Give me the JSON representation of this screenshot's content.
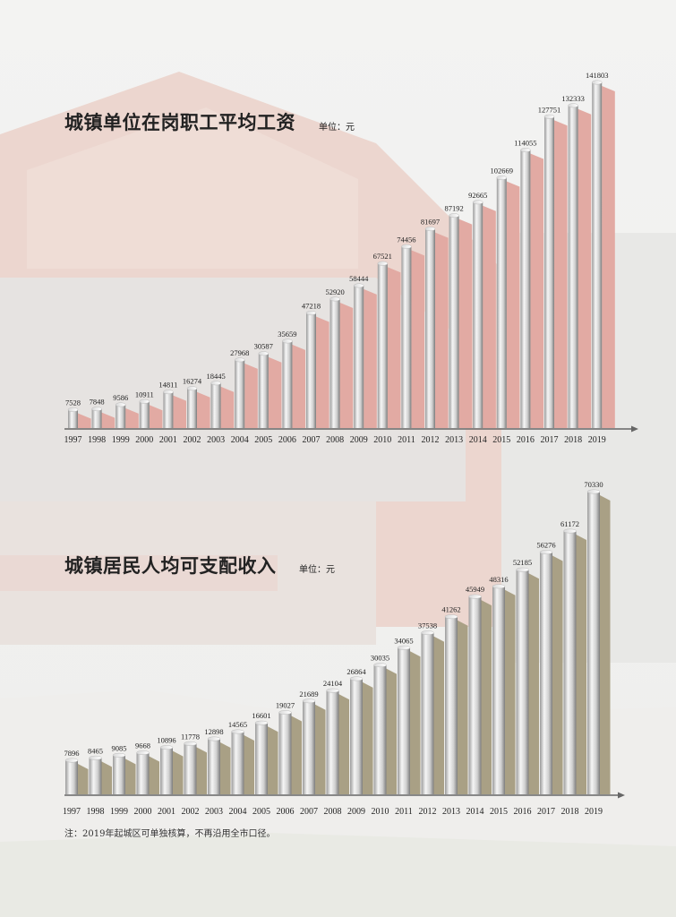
{
  "charts_text": {
    "chart1_title": "城镇单位在岗职工平均工资",
    "chart1_unit": "单位：元",
    "chart2_title": "城镇居民人均可支配收入",
    "chart2_unit": "单位：元",
    "footnote": "注：2019年起城区可单独核算，不再沿用全市口径。"
  },
  "colors": {
    "chart1_shadow": "#e2aaa3",
    "chart2_shadow": "#a9a085",
    "bar_light": "#f4f4f4",
    "bar_dark": "#8a8a8a",
    "axis": "#666666"
  },
  "chart_data": [
    {
      "type": "bar",
      "title": "城镇单位在岗职工平均工资",
      "unit": "单位：元",
      "categories": [
        "1997",
        "1998",
        "1999",
        "2000",
        "2001",
        "2002",
        "2003",
        "2004",
        "2005",
        "2006",
        "2007",
        "2008",
        "2009",
        "2010",
        "2011",
        "2012",
        "2013",
        "2014",
        "2015",
        "2016",
        "2017",
        "2018",
        "2019"
      ],
      "values": [
        7528,
        7848,
        9586,
        10911,
        14811,
        16274,
        18445,
        27968,
        30587,
        35659,
        47218,
        52920,
        58444,
        67521,
        74456,
        81697,
        87192,
        92665,
        102669,
        114055,
        127751,
        132333,
        141803
      ],
      "xlabel": "",
      "ylabel": "",
      "ylim": [
        0,
        141803
      ],
      "grid": false
    },
    {
      "type": "bar",
      "title": "城镇居民人均可支配收入",
      "unit": "单位：元",
      "categories": [
        "1997",
        "1998",
        "1999",
        "2000",
        "2001",
        "2002",
        "2003",
        "2004",
        "2005",
        "2006",
        "2007",
        "2008",
        "2009",
        "2010",
        "2011",
        "2012",
        "2013",
        "2014",
        "2015",
        "2016",
        "2017",
        "2018",
        "2019"
      ],
      "values": [
        7896,
        8465,
        9085,
        9668,
        10896,
        11778,
        12898,
        14565,
        16601,
        19027,
        21689,
        24104,
        26864,
        30035,
        34065,
        37538,
        41262,
        45949,
        48316,
        52185,
        56276,
        61172,
        70330
      ],
      "xlabel": "",
      "ylabel": "",
      "ylim": [
        0,
        70330
      ],
      "grid": false
    }
  ]
}
